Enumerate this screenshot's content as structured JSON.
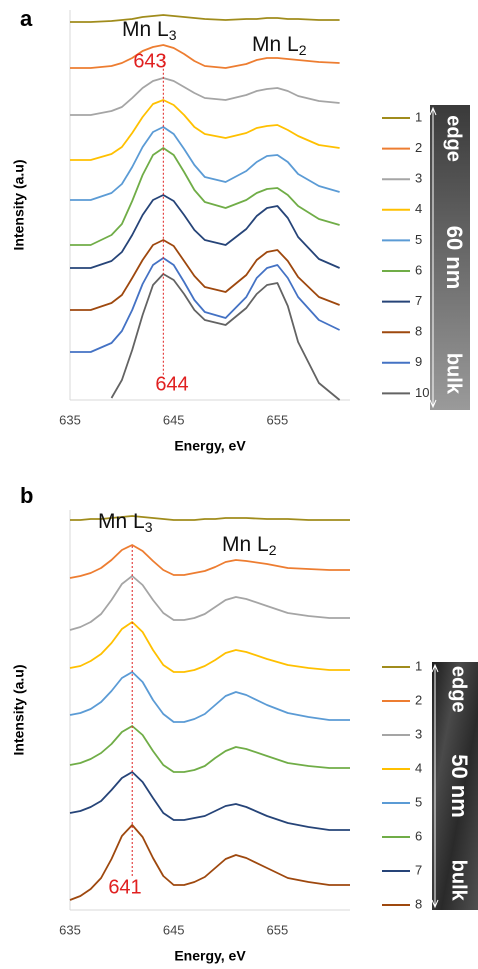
{
  "chart_data": [
    {
      "type": "line",
      "panel": "a",
      "xlabel": "Energy, eV",
      "ylabel": "Intensity (a.u)",
      "xlim": [
        635,
        662
      ],
      "xticks": [
        635,
        645,
        655
      ],
      "ylim": [
        0,
        390
      ],
      "legend": "right",
      "x": [
        635,
        637,
        639,
        640,
        641,
        642,
        643,
        644,
        645,
        646,
        647,
        648,
        650,
        652,
        653,
        654,
        655,
        656,
        657,
        659,
        661
      ],
      "series": [
        {
          "name": "1",
          "color": "#a08c1c",
          "values": [
            378,
            378,
            379,
            380,
            381,
            383,
            384,
            385,
            384,
            383,
            382,
            381,
            380,
            381,
            381,
            382,
            382,
            381,
            381,
            380,
            380
          ]
        },
        {
          "name": "2",
          "color": "#ed7d31",
          "values": [
            332,
            332,
            334,
            337,
            342,
            349,
            353,
            355,
            352,
            346,
            339,
            334,
            332,
            336,
            340,
            342,
            342,
            341,
            340,
            338,
            337
          ]
        },
        {
          "name": "3",
          "color": "#a5a5a5",
          "values": [
            285,
            285,
            289,
            293,
            302,
            312,
            319,
            322,
            319,
            313,
            307,
            302,
            300,
            305,
            309,
            311,
            312,
            309,
            304,
            299,
            297
          ]
        },
        {
          "name": "4",
          "color": "#ffc000",
          "values": [
            240,
            240,
            246,
            253,
            267,
            283,
            296,
            300,
            295,
            285,
            273,
            266,
            262,
            267,
            272,
            274,
            275,
            270,
            264,
            255,
            252
          ]
        },
        {
          "name": "5",
          "color": "#5b9bd5",
          "values": [
            200,
            200,
            207,
            216,
            233,
            253,
            268,
            273,
            266,
            251,
            235,
            223,
            218,
            229,
            238,
            244,
            245,
            238,
            226,
            214,
            208
          ]
        },
        {
          "name": "6",
          "color": "#70ad47",
          "values": [
            155,
            155,
            165,
            176,
            199,
            225,
            245,
            252,
            245,
            228,
            210,
            198,
            192,
            200,
            207,
            211,
            212,
            205,
            194,
            181,
            175
          ]
        },
        {
          "name": "7",
          "color": "#264478",
          "values": [
            132,
            132,
            139,
            148,
            165,
            185,
            200,
            205,
            199,
            185,
            170,
            160,
            155,
            171,
            184,
            192,
            194,
            182,
            163,
            141,
            132
          ]
        },
        {
          "name": "8",
          "color": "#9e480e",
          "values": [
            90,
            90,
            97,
            105,
            122,
            140,
            155,
            160,
            154,
            139,
            124,
            113,
            108,
            125,
            140,
            148,
            150,
            139,
            123,
            103,
            95
          ]
        },
        {
          "name": "9",
          "color": "#4472c4",
          "values": [
            48,
            48,
            57,
            69,
            90,
            116,
            135,
            142,
            135,
            118,
            100,
            88,
            82,
            103,
            122,
            132,
            135,
            122,
            103,
            80,
            70
          ]
        },
        {
          "name": "10",
          "color": "#636363",
          "values": [
            null,
            null,
            2,
            20,
            50,
            85,
            115,
            126,
            120,
            106,
            90,
            80,
            75,
            92,
            106,
            115,
            117,
            94,
            58,
            17,
            0
          ]
        }
      ],
      "annotations": [
        {
          "text": "Mn L",
          "sub": "3"
        },
        {
          "text": "Mn L",
          "sub": "2"
        }
      ],
      "marker_x": 644,
      "marker_labels": [
        "643",
        "644"
      ],
      "inset_labels": [
        "edge",
        "60 nm",
        "bulk"
      ]
    },
    {
      "type": "line",
      "panel": "b",
      "xlabel": "Energy, eV",
      "ylabel": "Intensity (a.u)",
      "xlim": [
        635,
        662
      ],
      "xticks": [
        635,
        645,
        655
      ],
      "ylim": [
        0,
        400
      ],
      "legend": "right",
      "x": [
        635,
        636,
        637,
        638,
        639,
        640,
        641,
        642,
        643,
        644,
        645,
        646,
        647,
        648,
        649,
        650,
        651,
        652,
        654,
        656,
        658,
        660,
        662
      ],
      "series": [
        {
          "name": "1",
          "color": "#a08c1c",
          "values": [
            390,
            390,
            391,
            391,
            392,
            393,
            394,
            393,
            392,
            391,
            390,
            390,
            390,
            391,
            391,
            392,
            392,
            392,
            391,
            391,
            390,
            390,
            390
          ]
        },
        {
          "name": "2",
          "color": "#ed7d31",
          "values": [
            332,
            334,
            337,
            342,
            350,
            360,
            365,
            359,
            349,
            340,
            335,
            335,
            337,
            339,
            343,
            348,
            350,
            349,
            346,
            342,
            341,
            340,
            340
          ]
        },
        {
          "name": "3",
          "color": "#a5a5a5",
          "values": [
            280,
            283,
            288,
            296,
            310,
            326,
            334,
            325,
            310,
            297,
            290,
            290,
            292,
            296,
            303,
            310,
            313,
            311,
            304,
            297,
            294,
            292,
            292
          ]
        },
        {
          "name": "4",
          "color": "#ffc000",
          "values": [
            242,
            244,
            249,
            256,
            267,
            281,
            288,
            278,
            260,
            245,
            238,
            238,
            240,
            244,
            250,
            257,
            260,
            258,
            251,
            245,
            242,
            240,
            240
          ]
        },
        {
          "name": "5",
          "color": "#5b9bd5",
          "values": [
            195,
            197,
            201,
            208,
            219,
            232,
            238,
            228,
            210,
            196,
            188,
            188,
            191,
            196,
            205,
            214,
            218,
            215,
            205,
            197,
            193,
            190,
            190
          ]
        },
        {
          "name": "6",
          "color": "#70ad47",
          "values": [
            145,
            147,
            151,
            157,
            166,
            178,
            184,
            175,
            159,
            145,
            138,
            138,
            140,
            144,
            152,
            159,
            163,
            161,
            154,
            147,
            144,
            142,
            142
          ]
        },
        {
          "name": "7",
          "color": "#264478",
          "values": [
            97,
            99,
            103,
            109,
            120,
            132,
            138,
            128,
            112,
            97,
            90,
            90,
            92,
            94,
            99,
            104,
            106,
            103,
            94,
            87,
            83,
            80,
            80
          ]
        },
        {
          "name": "8",
          "color": "#9e480e",
          "values": [
            10,
            14,
            21,
            32,
            51,
            74,
            85,
            73,
            52,
            34,
            25,
            25,
            28,
            33,
            42,
            51,
            55,
            52,
            42,
            32,
            28,
            25,
            25
          ]
        }
      ],
      "annotations": [
        {
          "text": "Mn L",
          "sub": "3"
        },
        {
          "text": "Mn L",
          "sub": "2"
        }
      ],
      "marker_x": 641,
      "marker_labels": [
        "641"
      ],
      "inset_labels": [
        "edge",
        "50 nm",
        "bulk"
      ]
    }
  ]
}
